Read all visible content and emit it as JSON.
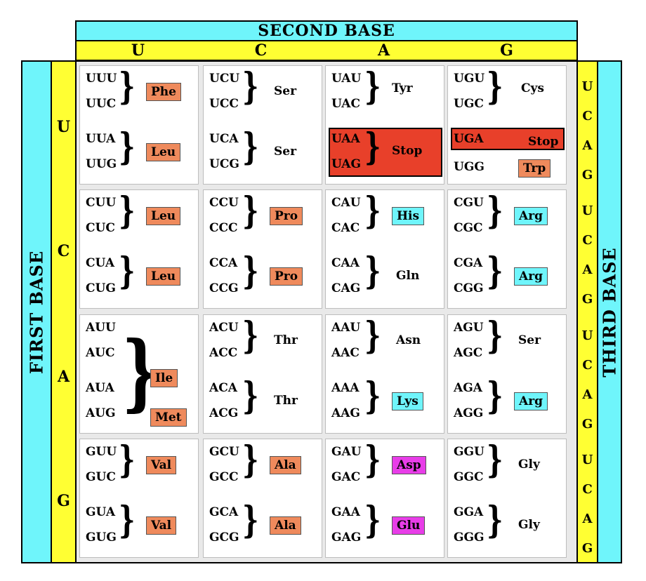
{
  "second_base_title": "SECOND BASE",
  "first_base_title": "FIRST BASE",
  "third_base_title": "THIRD BASE",
  "columns": [
    "U",
    "C",
    "A",
    "G"
  ],
  "rows": [
    "U",
    "C",
    "A",
    "G"
  ],
  "third_letters": [
    "U",
    "C",
    "A",
    "G"
  ],
  "colors": {
    "cyan": "#6ff5fb",
    "yellow": "#ffff33",
    "orange": "#ef8a5c",
    "magenta": "#e83de8",
    "stop_red": "#e8402a"
  },
  "cells": {
    "UU": {
      "codons": [
        "UUU",
        "UUC",
        "UUA",
        "UUG"
      ],
      "aa": [
        {
          "name": "Phe",
          "style": "orange"
        },
        {
          "name": "Leu",
          "style": "orange"
        }
      ]
    },
    "UC": {
      "codons": [
        "UCU",
        "UCC",
        "UCA",
        "UCG"
      ],
      "aa": [
        {
          "name": "Ser",
          "style": "plain"
        },
        {
          "name": "Ser",
          "style": "plain"
        }
      ]
    },
    "UA": {
      "codons": [
        "UAU",
        "UAC",
        "UAA",
        "UAG"
      ],
      "aa": [
        {
          "name": "Tyr",
          "style": "plain"
        },
        {
          "name": "Stop",
          "style": "stop"
        }
      ]
    },
    "UG": {
      "codons": [
        "UGU",
        "UGC",
        "UGA",
        "UGG"
      ],
      "aa": [
        {
          "name": "Cys",
          "style": "plain"
        },
        {
          "name": "Stop",
          "style": "stop"
        },
        {
          "name": "Trp",
          "style": "orange"
        }
      ]
    },
    "CU": {
      "codons": [
        "CUU",
        "CUC",
        "CUA",
        "CUG"
      ],
      "aa": [
        {
          "name": "Leu",
          "style": "orange"
        },
        {
          "name": "Leu",
          "style": "orange"
        }
      ]
    },
    "CC": {
      "codons": [
        "CCU",
        "CCC",
        "CCA",
        "CCG"
      ],
      "aa": [
        {
          "name": "Pro",
          "style": "orange"
        },
        {
          "name": "Pro",
          "style": "orange"
        }
      ]
    },
    "CA": {
      "codons": [
        "CAU",
        "CAC",
        "CAA",
        "CAG"
      ],
      "aa": [
        {
          "name": "His",
          "style": "cyanbox"
        },
        {
          "name": "Gln",
          "style": "plain"
        }
      ]
    },
    "CG": {
      "codons": [
        "CGU",
        "CGC",
        "CGA",
        "CGG"
      ],
      "aa": [
        {
          "name": "Arg",
          "style": "cyanbox"
        },
        {
          "name": "Arg",
          "style": "cyanbox"
        }
      ]
    },
    "AU": {
      "codons": [
        "AUU",
        "AUC",
        "AUA",
        "AUG"
      ],
      "aa": [
        {
          "name": "Ile",
          "style": "orange"
        },
        {
          "name": "Met",
          "style": "orange"
        }
      ]
    },
    "AC": {
      "codons": [
        "ACU",
        "ACC",
        "ACA",
        "ACG"
      ],
      "aa": [
        {
          "name": "Thr",
          "style": "plain"
        },
        {
          "name": "Thr",
          "style": "plain"
        }
      ]
    },
    "AA": {
      "codons": [
        "AAU",
        "AAC",
        "AAA",
        "AAG"
      ],
      "aa": [
        {
          "name": "Asn",
          "style": "plain"
        },
        {
          "name": "Lys",
          "style": "cyanbox"
        }
      ]
    },
    "AG": {
      "codons": [
        "AGU",
        "AGC",
        "AGA",
        "AGG"
      ],
      "aa": [
        {
          "name": "Ser",
          "style": "plain"
        },
        {
          "name": "Arg",
          "style": "cyanbox"
        }
      ]
    },
    "GU": {
      "codons": [
        "GUU",
        "GUC",
        "GUA",
        "GUG"
      ],
      "aa": [
        {
          "name": "Val",
          "style": "orange"
        },
        {
          "name": "Val",
          "style": "orange"
        }
      ]
    },
    "GC": {
      "codons": [
        "GCU",
        "GCC",
        "GCA",
        "GCG"
      ],
      "aa": [
        {
          "name": "Ala",
          "style": "orange"
        },
        {
          "name": "Ala",
          "style": "orange"
        }
      ]
    },
    "GA": {
      "codons": [
        "GAU",
        "GAC",
        "GAA",
        "GAG"
      ],
      "aa": [
        {
          "name": "Asp",
          "style": "magenta"
        },
        {
          "name": "Glu",
          "style": "magenta"
        }
      ]
    },
    "GG": {
      "codons": [
        "GGU",
        "GGC",
        "GGA",
        "GGG"
      ],
      "aa": [
        {
          "name": "Gly",
          "style": "plain"
        },
        {
          "name": "Gly",
          "style": "plain"
        }
      ]
    }
  }
}
